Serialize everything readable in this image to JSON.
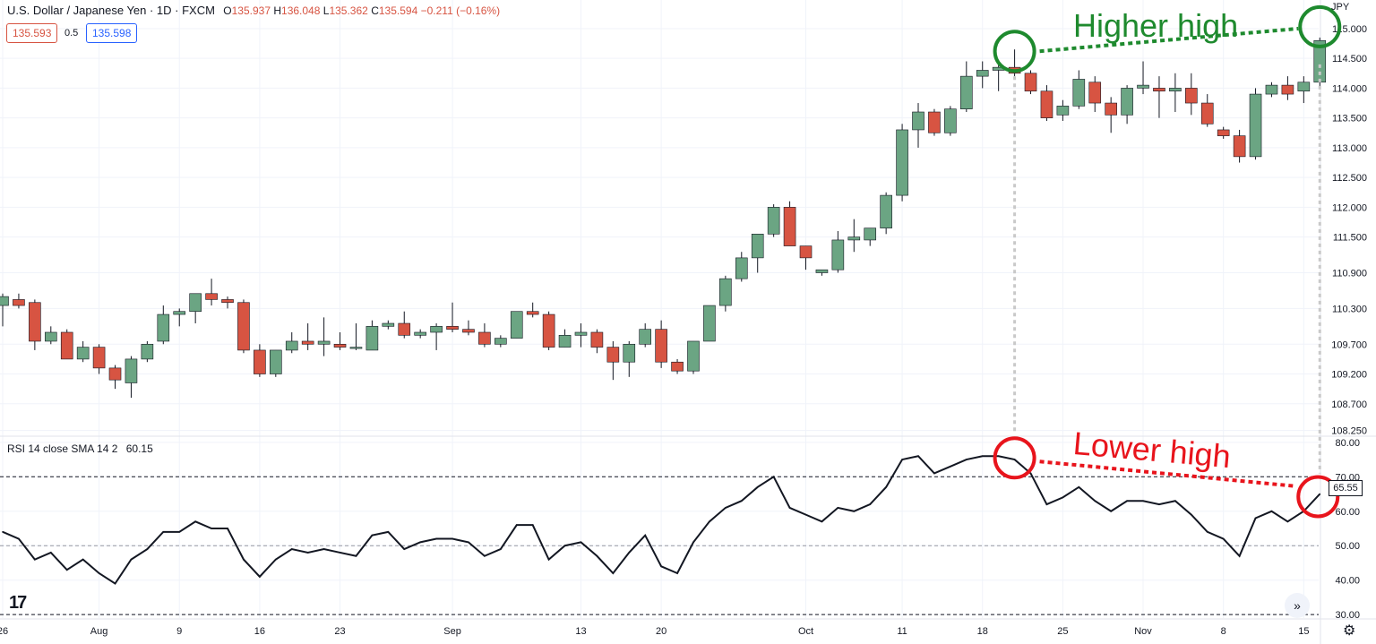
{
  "header": {
    "symbol": "U.S. Dollar / Japanese Yen · 1D · FXCM",
    "o_label": "O",
    "o_value": "135.937",
    "h_label": "H",
    "h_value": "136.048",
    "l_label": "L",
    "l_value": "135.362",
    "c_label": "C",
    "c_value": "135.594",
    "change": "−0.211 (−0.16%)",
    "sell_price": "135.593",
    "spread": "0.5",
    "buy_price": "135.598",
    "currency": "JPY"
  },
  "indicator": {
    "label": "RSI 14 close SMA 14 2",
    "value": "60.15",
    "last_value": "65.55"
  },
  "annotations": {
    "top": "Higher high",
    "bottom": "Lower high"
  },
  "colors": {
    "up": "#6ba583",
    "down": "#d75442",
    "green_annotation": "#1e8a2e",
    "red_annotation": "#e8141c"
  },
  "icons": {
    "logo": "tradingview-logo-icon",
    "scroll": "scroll-to-latest-icon",
    "settings": "gear-icon"
  },
  "chart_data": [
    {
      "type": "candlestick",
      "title": "U.S. Dollar / Japanese Yen · 1D · FXCM",
      "y_axis_ticks": [
        "115.000",
        "114.500",
        "114.000",
        "113.500",
        "113.000",
        "112.500",
        "112.000",
        "111.500",
        "110.900",
        "110.300",
        "109.700",
        "109.200",
        "108.700",
        "108.250"
      ],
      "y_axis_tick_values": [
        115.0,
        114.5,
        114.0,
        113.5,
        113.0,
        112.5,
        112.0,
        111.5,
        110.9,
        110.3,
        109.7,
        109.2,
        108.7,
        108.25
      ],
      "ylim": [
        108.2,
        115.3
      ],
      "x_axis_labels": [
        "26",
        "Aug",
        "9",
        "16",
        "23",
        "Sep",
        "13",
        "20",
        "Oct",
        "11",
        "18",
        "25",
        "Nov",
        "8",
        "15"
      ],
      "x_axis_label_index": [
        0,
        6,
        11,
        16,
        21,
        28,
        36,
        41,
        50,
        56,
        61,
        66,
        71,
        76,
        81
      ],
      "grid": true,
      "candles": [
        {
          "o": 110.35,
          "h": 110.55,
          "l": 110.0,
          "c": 110.5
        },
        {
          "o": 110.45,
          "h": 110.55,
          "l": 110.3,
          "c": 110.35
        },
        {
          "o": 110.4,
          "h": 110.45,
          "l": 109.6,
          "c": 109.75
        },
        {
          "o": 109.75,
          "h": 110.0,
          "l": 109.7,
          "c": 109.9
        },
        {
          "o": 109.9,
          "h": 109.95,
          "l": 109.45,
          "c": 109.45
        },
        {
          "o": 109.45,
          "h": 109.75,
          "l": 109.4,
          "c": 109.65
        },
        {
          "o": 109.65,
          "h": 109.7,
          "l": 109.2,
          "c": 109.3
        },
        {
          "o": 109.3,
          "h": 109.35,
          "l": 108.95,
          "c": 109.1
        },
        {
          "o": 109.05,
          "h": 109.5,
          "l": 108.8,
          "c": 109.45
        },
        {
          "o": 109.45,
          "h": 109.75,
          "l": 109.4,
          "c": 109.7
        },
        {
          "o": 109.75,
          "h": 110.35,
          "l": 109.7,
          "c": 110.2
        },
        {
          "o": 110.2,
          "h": 110.3,
          "l": 110.0,
          "c": 110.25
        },
        {
          "o": 110.25,
          "h": 110.55,
          "l": 110.05,
          "c": 110.55
        },
        {
          "o": 110.55,
          "h": 110.8,
          "l": 110.35,
          "c": 110.45
        },
        {
          "o": 110.45,
          "h": 110.5,
          "l": 110.3,
          "c": 110.4
        },
        {
          "o": 110.4,
          "h": 110.45,
          "l": 109.55,
          "c": 109.6
        },
        {
          "o": 109.6,
          "h": 109.7,
          "l": 109.15,
          "c": 109.2
        },
        {
          "o": 109.2,
          "h": 109.6,
          "l": 109.15,
          "c": 109.6
        },
        {
          "o": 109.6,
          "h": 109.9,
          "l": 109.55,
          "c": 109.75
        },
        {
          "o": 109.75,
          "h": 110.05,
          "l": 109.6,
          "c": 109.7
        },
        {
          "o": 109.7,
          "h": 110.15,
          "l": 109.5,
          "c": 109.75
        },
        {
          "o": 109.7,
          "h": 109.9,
          "l": 109.6,
          "c": 109.65
        },
        {
          "o": 109.65,
          "h": 110.05,
          "l": 109.6,
          "c": 109.65
        },
        {
          "o": 109.6,
          "h": 110.1,
          "l": 109.6,
          "c": 110.0
        },
        {
          "o": 110.0,
          "h": 110.1,
          "l": 109.95,
          "c": 110.05
        },
        {
          "o": 110.05,
          "h": 110.25,
          "l": 109.8,
          "c": 109.85
        },
        {
          "o": 109.85,
          "h": 109.95,
          "l": 109.8,
          "c": 109.9
        },
        {
          "o": 109.9,
          "h": 110.05,
          "l": 109.6,
          "c": 110.0
        },
        {
          "o": 110.0,
          "h": 110.4,
          "l": 109.9,
          "c": 109.95
        },
        {
          "o": 109.95,
          "h": 110.1,
          "l": 109.85,
          "c": 109.9
        },
        {
          "o": 109.9,
          "h": 110.05,
          "l": 109.65,
          "c": 109.7
        },
        {
          "o": 109.7,
          "h": 109.85,
          "l": 109.65,
          "c": 109.8
        },
        {
          "o": 109.8,
          "h": 110.25,
          "l": 109.8,
          "c": 110.25
        },
        {
          "o": 110.25,
          "h": 110.4,
          "l": 110.15,
          "c": 110.2
        },
        {
          "o": 110.2,
          "h": 110.25,
          "l": 109.6,
          "c": 109.65
        },
        {
          "o": 109.65,
          "h": 109.95,
          "l": 109.65,
          "c": 109.85
        },
        {
          "o": 109.85,
          "h": 110.05,
          "l": 109.65,
          "c": 109.9
        },
        {
          "o": 109.9,
          "h": 109.95,
          "l": 109.55,
          "c": 109.65
        },
        {
          "o": 109.65,
          "h": 109.75,
          "l": 109.1,
          "c": 109.4
        },
        {
          "o": 109.4,
          "h": 109.75,
          "l": 109.15,
          "c": 109.7
        },
        {
          "o": 109.7,
          "h": 110.05,
          "l": 109.65,
          "c": 109.95
        },
        {
          "o": 109.95,
          "h": 110.1,
          "l": 109.3,
          "c": 109.4
        },
        {
          "o": 109.4,
          "h": 109.45,
          "l": 109.2,
          "c": 109.25
        },
        {
          "o": 109.25,
          "h": 109.75,
          "l": 109.2,
          "c": 109.75
        },
        {
          "o": 109.75,
          "h": 110.35,
          "l": 109.75,
          "c": 110.35
        },
        {
          "o": 110.35,
          "h": 110.85,
          "l": 110.25,
          "c": 110.8
        },
        {
          "o": 110.8,
          "h": 111.25,
          "l": 110.75,
          "c": 111.15
        },
        {
          "o": 111.15,
          "h": 111.55,
          "l": 110.9,
          "c": 111.55
        },
        {
          "o": 111.55,
          "h": 112.05,
          "l": 111.5,
          "c": 112.0
        },
        {
          "o": 112.0,
          "h": 112.1,
          "l": 111.35,
          "c": 111.35
        },
        {
          "o": 111.35,
          "h": 111.35,
          "l": 110.95,
          "c": 111.15
        },
        {
          "o": 110.9,
          "h": 110.95,
          "l": 110.85,
          "c": 110.95
        },
        {
          "o": 110.95,
          "h": 111.6,
          "l": 110.9,
          "c": 111.45
        },
        {
          "o": 111.45,
          "h": 111.8,
          "l": 111.25,
          "c": 111.5
        },
        {
          "o": 111.45,
          "h": 111.65,
          "l": 111.35,
          "c": 111.65
        },
        {
          "o": 111.65,
          "h": 112.25,
          "l": 111.55,
          "c": 112.2
        },
        {
          "o": 112.2,
          "h": 113.4,
          "l": 112.1,
          "c": 113.3
        },
        {
          "o": 113.3,
          "h": 113.75,
          "l": 113.0,
          "c": 113.6
        },
        {
          "o": 113.6,
          "h": 113.65,
          "l": 113.2,
          "c": 113.25
        },
        {
          "o": 113.25,
          "h": 113.7,
          "l": 113.2,
          "c": 113.65
        },
        {
          "o": 113.65,
          "h": 114.45,
          "l": 113.6,
          "c": 114.2
        },
        {
          "o": 114.2,
          "h": 114.45,
          "l": 114.0,
          "c": 114.3
        },
        {
          "o": 114.3,
          "h": 114.45,
          "l": 113.95,
          "c": 114.35
        },
        {
          "o": 114.35,
          "h": 114.65,
          "l": 114.2,
          "c": 114.25
        },
        {
          "o": 114.25,
          "h": 114.3,
          "l": 113.9,
          "c": 113.95
        },
        {
          "o": 113.95,
          "h": 114.05,
          "l": 113.45,
          "c": 113.5
        },
        {
          "o": 113.55,
          "h": 113.8,
          "l": 113.45,
          "c": 113.7
        },
        {
          "o": 113.7,
          "h": 114.3,
          "l": 113.65,
          "c": 114.15
        },
        {
          "o": 114.1,
          "h": 114.2,
          "l": 113.6,
          "c": 113.75
        },
        {
          "o": 113.75,
          "h": 113.85,
          "l": 113.25,
          "c": 113.55
        },
        {
          "o": 113.55,
          "h": 114.05,
          "l": 113.4,
          "c": 114.0
        },
        {
          "o": 114.0,
          "h": 114.45,
          "l": 113.9,
          "c": 114.05
        },
        {
          "o": 114.0,
          "h": 114.2,
          "l": 113.5,
          "c": 113.95
        },
        {
          "o": 113.95,
          "h": 114.25,
          "l": 113.6,
          "c": 114.0
        },
        {
          "o": 114.0,
          "h": 114.25,
          "l": 113.55,
          "c": 113.75
        },
        {
          "o": 113.75,
          "h": 113.9,
          "l": 113.35,
          "c": 113.4
        },
        {
          "o": 113.3,
          "h": 113.35,
          "l": 113.15,
          "c": 113.2
        },
        {
          "o": 113.2,
          "h": 113.3,
          "l": 112.75,
          "c": 112.85
        },
        {
          "o": 112.85,
          "h": 114.0,
          "l": 112.8,
          "c": 113.9
        },
        {
          "o": 113.9,
          "h": 114.1,
          "l": 113.85,
          "c": 114.05
        },
        {
          "o": 114.05,
          "h": 114.2,
          "l": 113.8,
          "c": 113.9
        },
        {
          "o": 113.95,
          "h": 114.2,
          "l": 113.75,
          "c": 114.1
        },
        {
          "o": 114.1,
          "h": 114.85,
          "l": 114.0,
          "c": 114.8
        }
      ]
    },
    {
      "type": "line",
      "title": "RSI 14 close SMA 14 2",
      "y_axis_ticks": [
        "80.00",
        "70.00",
        "60.00",
        "50.00",
        "40.00",
        "30.00"
      ],
      "y_axis_tick_values": [
        80,
        70,
        60,
        50,
        40,
        30
      ],
      "ylim": [
        29,
        81
      ],
      "reference_lines": [
        70,
        50,
        30
      ],
      "values": [
        54,
        52,
        46,
        48,
        43,
        46,
        42,
        39,
        46,
        49,
        54,
        54,
        57,
        55,
        55,
        46,
        41,
        46,
        49,
        48,
        49,
        48,
        47,
        53,
        54,
        49,
        51,
        52,
        52,
        51,
        47,
        49,
        56,
        56,
        46,
        50,
        51,
        47,
        42,
        48,
        53,
        44,
        42,
        51,
        57,
        61,
        63,
        67,
        70,
        61,
        59,
        57,
        61,
        60,
        62,
        67,
        75,
        76,
        71,
        73,
        75,
        76,
        76,
        75,
        71,
        62,
        64,
        67,
        63,
        60,
        63,
        63,
        62,
        63,
        59,
        54,
        52,
        47,
        58,
        60,
        57,
        60,
        65
      ]
    }
  ]
}
